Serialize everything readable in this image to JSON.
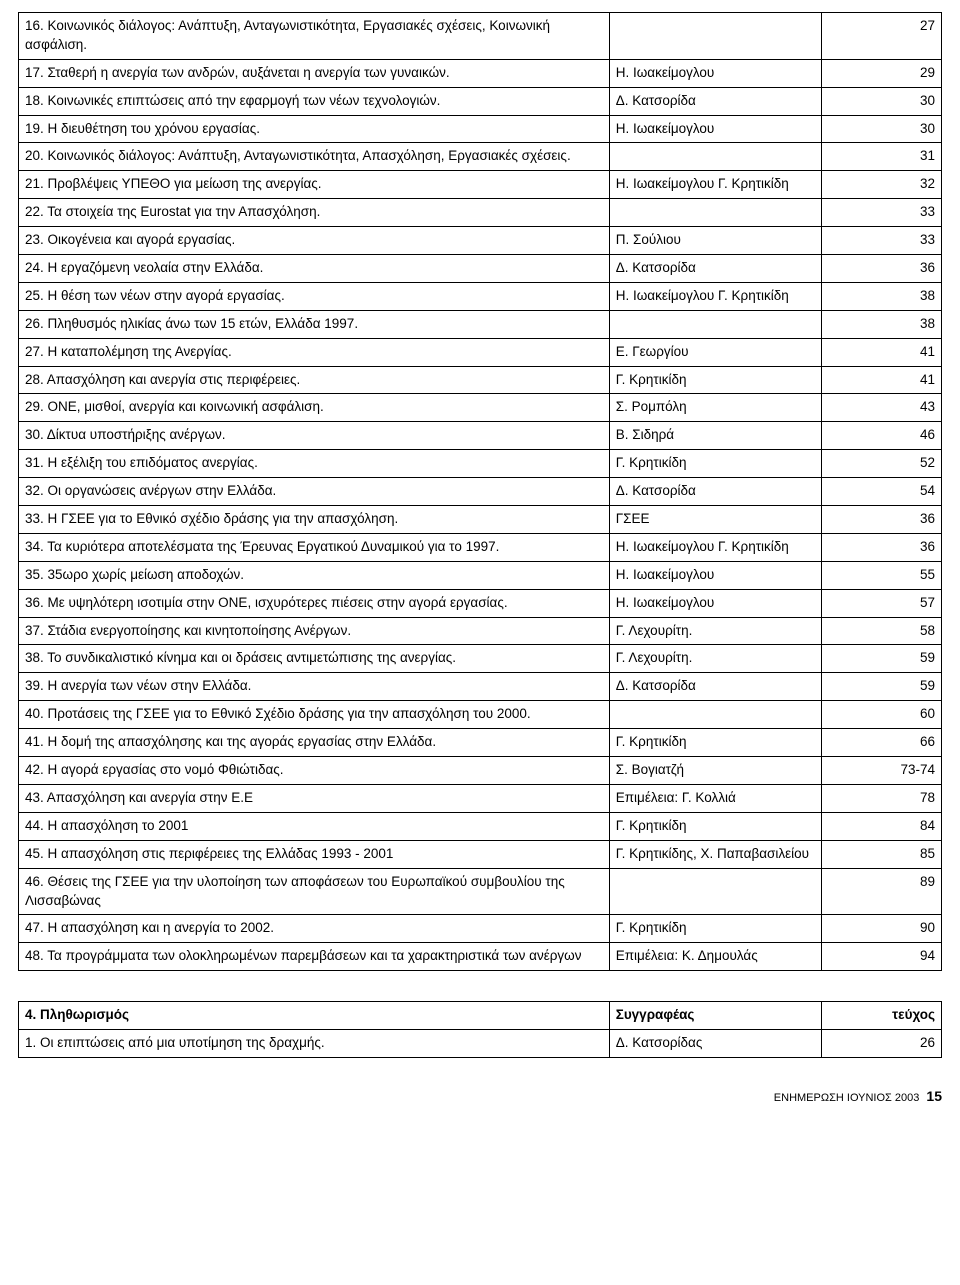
{
  "table1": {
    "rows": [
      {
        "title": "16. Κοινωνικός διάλογος: Ανάπτυξη, Ανταγωνιστικότητα, Εργασιακές σχέσεις, Κοινωνική ασφάλιση.",
        "author": "",
        "page": "27"
      },
      {
        "title": "17. Σταθερή η ανεργία των ανδρών, αυξάνεται η ανεργία των γυναικών.",
        "author": "Η. Ιωακείμογλου",
        "page": "29"
      },
      {
        "title": "18. Κοινωνικές επιπτώσεις από την εφαρμογή των νέων τεχνολογιών.",
        "author": "Δ. Κατσορίδα",
        "page": "30"
      },
      {
        "title": "19. Η διευθέτηση του χρόνου εργασίας.",
        "author": "Η. Ιωακείμογλου",
        "page": "30"
      },
      {
        "title": "20. Κοινωνικός διάλογος: Ανάπτυξη, Ανταγωνιστικότητα, Απασχόληση, Εργασιακές σχέσεις.",
        "author": "",
        "page": "31"
      },
      {
        "title": "21. Προβλέψεις ΥΠΕΘΟ για μείωση της ανεργίας.",
        "author": "Η. Ιωακείμογλου Γ. Κρητικίδη",
        "page": "32"
      },
      {
        "title": "22. Τα στοιχεία της Eurostat για την Απασχόληση.",
        "author": "",
        "page": "33"
      },
      {
        "title": "23. Οικογένεια και αγορά εργασίας.",
        "author": "Π. Σούλιου",
        "page": "33"
      },
      {
        "title": "24. Η εργαζόμενη νεολαία στην Ελλάδα.",
        "author": "Δ. Κατσορίδα",
        "page": "36"
      },
      {
        "title": "25. Η θέση των νέων στην αγορά εργασίας.",
        "author": "Η. Ιωακείμογλου Γ. Κρητικίδη",
        "page": "38"
      },
      {
        "title": "26. Πληθυσμός ηλικίας άνω των 15 ετών, Ελλάδα 1997.",
        "author": "",
        "page": "38"
      },
      {
        "title": "27. Η καταπολέμηση της Ανεργίας.",
        "author": "Ε. Γεωργίου",
        "page": "41"
      },
      {
        "title": "28. Απασχόληση και ανεργία στις περιφέρειες.",
        "author": "Γ. Κρητικίδη",
        "page": "41"
      },
      {
        "title": "29. ΟΝΕ, μισθοί, ανεργία και κοινωνική ασφάλιση.",
        "author": "Σ. Ρομπόλη",
        "page": "43"
      },
      {
        "title": "30. Δίκτυα υποστήριξης ανέργων.",
        "author": "Β. Σιδηρά",
        "page": "46"
      },
      {
        "title": "31. Η εξέλιξη του επιδόματος ανεργίας.",
        "author": "Γ. Κρητικίδη",
        "page": "52"
      },
      {
        "title": "32. Οι οργανώσεις ανέργων στην Ελλάδα.",
        "author": "Δ. Κατσορίδα",
        "page": "54"
      },
      {
        "title": "33. Η ΓΣΕΕ για το Εθνικό σχέδιο δράσης για την απασχόληση.",
        "author": "ΓΣΕΕ",
        "page": "36"
      },
      {
        "title": "34. Τα κυριότερα αποτελέσματα της Έρευνας Εργατικού Δυναμικού για το 1997.",
        "author": "Η. Ιωακείμογλου Γ. Κρητικίδη",
        "page": "36"
      },
      {
        "title": "35. 35ωρο χωρίς μείωση αποδοχών.",
        "author": "Η. Ιωακείμογλου",
        "page": "55"
      },
      {
        "title": "36. Με υψηλότερη ισοτιμία στην ΟΝΕ, ισχυρότερες πιέσεις στην αγορά εργασίας.",
        "author": "Η. Ιωακείμογλου",
        "page": "57"
      },
      {
        "title": "37. Στάδια ενεργοποίησης και κινητοποίησης Ανέργων.",
        "author": "Γ. Λεχουρίτη.",
        "page": "58"
      },
      {
        "title": "38. Το συνδικαλιστικό κίνημα και οι δράσεις αντιμετώπισης της ανεργίας.",
        "author": "Γ. Λεχουρίτη.",
        "page": "59"
      },
      {
        "title": "39. Η ανεργία των νέων στην Ελλάδα.",
        "author": "Δ. Κατσορίδα",
        "page": "59"
      },
      {
        "title": "40. Προτάσεις της ΓΣΕΕ για το Εθνικό Σχέδιο δράσης για την απασχόληση του 2000.",
        "author": "",
        "page": "60"
      },
      {
        "title": "41. Η δομή της απασχόλησης και της αγοράς εργασίας στην Ελλάδα.",
        "author": "Γ. Κρητικίδη",
        "page": "66"
      },
      {
        "title": "42. Η αγορά εργασίας στο νομό Φθιώτιδας.",
        "author": "Σ. Βογιατζή",
        "page": "73-74"
      },
      {
        "title": "43. Απασχόληση και ανεργία στην Ε.Ε",
        "author": "Επιμέλεια: Γ. Κολλιά",
        "page": "78"
      },
      {
        "title": "44. Η απασχόληση το 2001",
        "author": "Γ. Κρητικίδη",
        "page": "84"
      },
      {
        "title": "45. Η απασχόληση στις περιφέρειες της Ελλάδας 1993 - 2001",
        "author": "Γ. Κρητικίδης, Χ. Παπαβασιλείου",
        "page": "85"
      },
      {
        "title": "46. Θέσεις της ΓΣΕΕ για την υλοποίηση των αποφάσεων του Ευρωπαϊκού συμβουλίου της Λισσαβώνας",
        "author": "",
        "page": "89"
      },
      {
        "title": "47. Η απασχόληση και η ανεργία το 2002.",
        "author": "Γ. Κρητικίδη",
        "page": "90"
      },
      {
        "title": "48. Τα προγράμματα των ολοκληρωμένων παρεμβάσεων και τα χαρακτηριστικά των ανέργων",
        "author": "Επιμέλεια: Κ. Δημουλάς",
        "page": "94"
      }
    ]
  },
  "table2": {
    "header": {
      "title": "4. Πληθωρισμός",
      "author": "Συγγραφέας",
      "page": "τεύχος"
    },
    "rows": [
      {
        "title": "1. Οι επιπτώσεις από μια υποτίμηση της δραχμής.",
        "author": "Δ. Κατσορίδας",
        "page": "26"
      }
    ]
  },
  "footer": {
    "text": "ΕΝΗΜΕΡΩΣΗ ΙΟΥΝΙΟΣ 2003",
    "page": "15"
  }
}
